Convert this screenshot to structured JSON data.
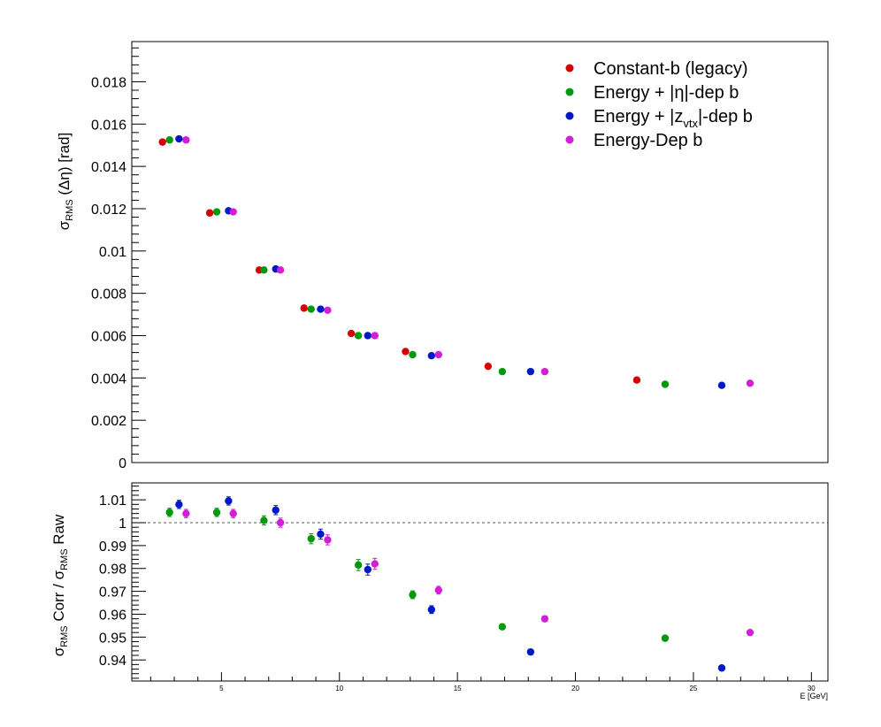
{
  "chart_data": [
    {
      "type": "scatter",
      "xlim": [
        1.2,
        30.7
      ],
      "ylim": [
        0,
        0.0199
      ],
      "yticks": [
        "0",
        "0.002",
        "0.004",
        "0.006",
        "0.008",
        "0.01",
        "0.012",
        "0.014",
        "0.016",
        "0.018"
      ],
      "yticks_values": [
        0,
        0.002,
        0.004,
        0.006,
        0.008,
        0.01,
        0.012,
        0.014,
        0.016,
        0.018
      ],
      "ylabel": {
        "base": "σ",
        "sub": "RMS",
        "rest": " (Δη) [rad]"
      },
      "legend_position": "top-right",
      "series": [
        {
          "name": "Constant-b (legacy)",
          "color": "#d40000",
          "x": [
            2.5,
            4.5,
            6.6,
            8.5,
            10.5,
            12.8,
            16.3,
            22.6
          ],
          "y": [
            0.01515,
            0.0118,
            0.0091,
            0.0073,
            0.0061,
            0.00525,
            0.00455,
            0.0039
          ]
        },
        {
          "name": "Energy + |η|-dep b",
          "color": "#00990d",
          "x": [
            2.8,
            4.8,
            6.8,
            8.8,
            10.8,
            13.1,
            16.9,
            23.8
          ],
          "y": [
            0.01525,
            0.01185,
            0.0091,
            0.00725,
            0.006,
            0.0051,
            0.0043,
            0.0037
          ]
        },
        {
          "name_parts": [
            "Energy + |z",
            "vtx",
            "|-dep b"
          ],
          "color": "#0018c8",
          "x": [
            3.2,
            5.3,
            7.3,
            9.2,
            11.2,
            13.9,
            18.1,
            26.2
          ],
          "y": [
            0.0153,
            0.0119,
            0.00915,
            0.00725,
            0.006,
            0.00505,
            0.0043,
            0.00365
          ]
        },
        {
          "name": "Energy-Dep b",
          "color": "#d21ed8",
          "x": [
            3.5,
            5.5,
            7.5,
            9.5,
            11.5,
            14.2,
            18.7,
            27.4
          ],
          "y": [
            0.01525,
            0.01185,
            0.0091,
            0.0072,
            0.006,
            0.0051,
            0.0043,
            0.00375
          ]
        }
      ]
    },
    {
      "type": "scatter",
      "xlim": [
        1.2,
        30.7
      ],
      "ylim": [
        0.9308,
        1.0174
      ],
      "xticks": [
        "5",
        "10",
        "15",
        "20",
        "25",
        "30"
      ],
      "xticks_values": [
        5,
        10,
        15,
        20,
        25,
        30
      ],
      "yticks": [
        "0.94",
        "0.95",
        "0.96",
        "0.97",
        "0.98",
        "0.99",
        "1",
        "1.01"
      ],
      "yticks_values": [
        0.94,
        0.95,
        0.96,
        0.97,
        0.98,
        0.99,
        1.0,
        1.01
      ],
      "xlabel": "E  [GeV]",
      "ylabel": {
        "part1": "σ",
        "sub1": "RMS",
        "part2": " Corr / σ",
        "sub2": "RMS",
        "part3": " Raw"
      },
      "reference_line": 1.0,
      "series": [
        {
          "color": "#00990d",
          "x": [
            2.8,
            4.8,
            6.8,
            8.8,
            10.8,
            13.1,
            16.9,
            23.8
          ],
          "y": [
            1.0045,
            1.0045,
            1.001,
            0.993,
            0.9815,
            0.9685,
            0.9545,
            0.9495
          ],
          "err": [
            0.0018,
            0.0018,
            0.002,
            0.0022,
            0.0024,
            0.0017,
            0.0012,
            0.001
          ]
        },
        {
          "color": "#0018c8",
          "x": [
            3.2,
            5.3,
            7.3,
            9.2,
            11.2,
            13.9,
            18.1,
            26.2
          ],
          "y": [
            1.008,
            1.0095,
            1.0055,
            0.995,
            0.9795,
            0.962,
            0.9435,
            0.9365
          ],
          "err": [
            0.0018,
            0.0018,
            0.002,
            0.0022,
            0.0024,
            0.0017,
            0.0012,
            0.001
          ]
        },
        {
          "color": "#d21ed8",
          "x": [
            3.5,
            5.5,
            7.5,
            9.5,
            11.5,
            14.2,
            18.7,
            27.4
          ],
          "y": [
            1.004,
            1.004,
            1.0,
            0.9925,
            0.982,
            0.9705,
            0.958,
            0.952
          ],
          "err": [
            0.0018,
            0.0018,
            0.002,
            0.0022,
            0.0024,
            0.0017,
            0.0012,
            0.001
          ]
        }
      ]
    }
  ]
}
